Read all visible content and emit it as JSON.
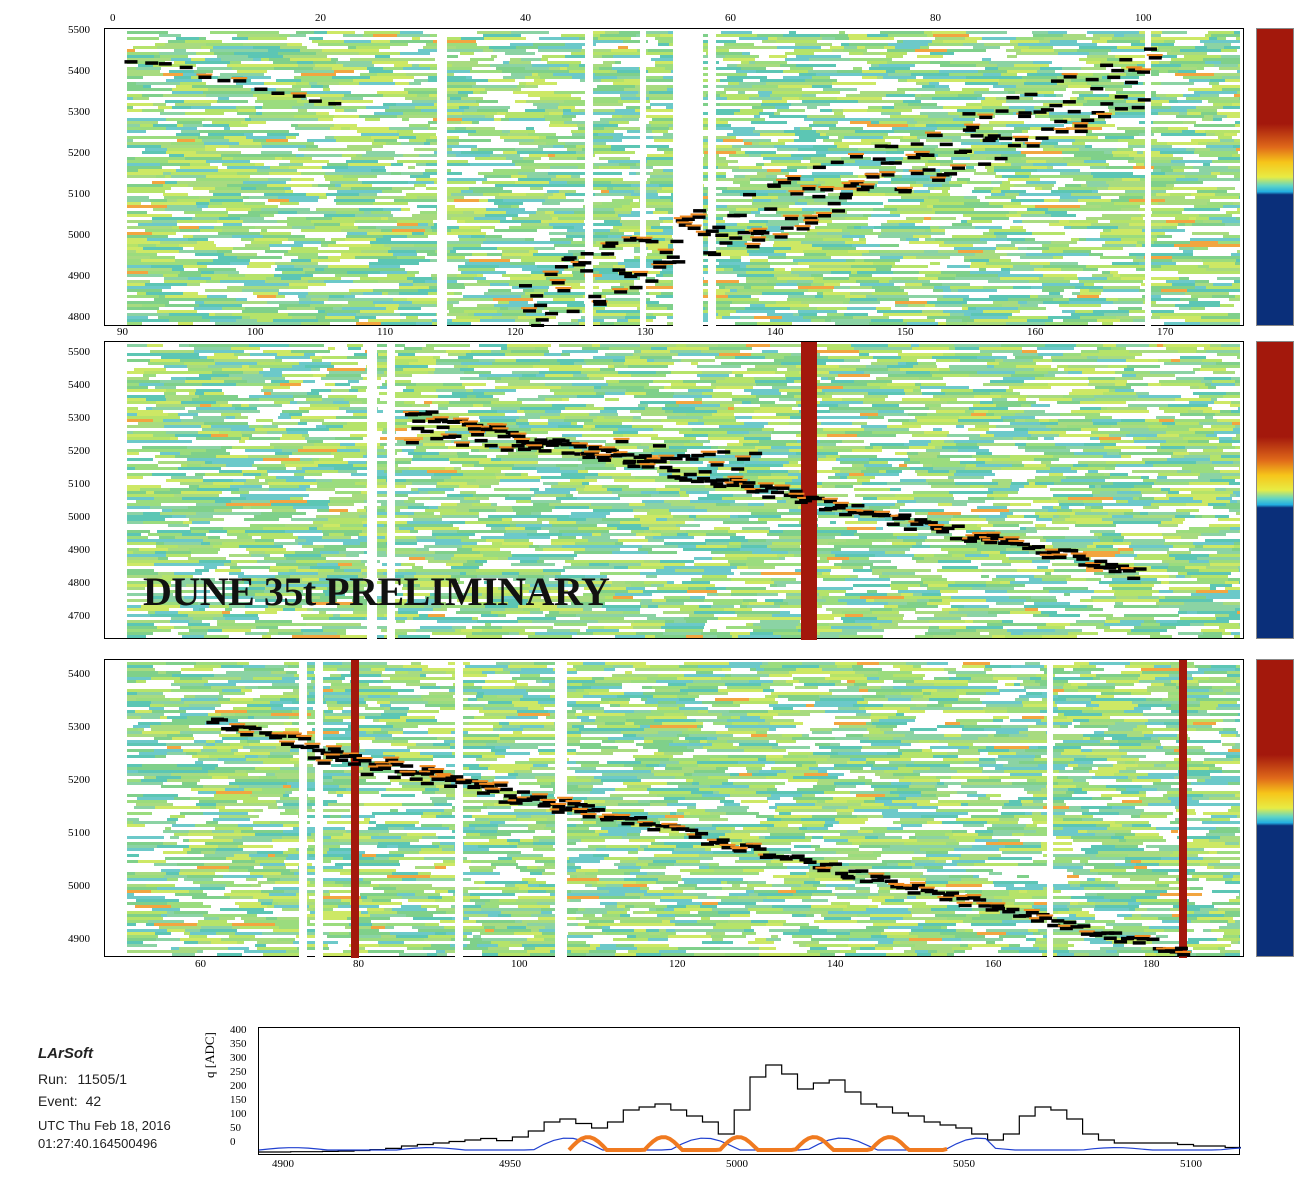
{
  "overlay_label": "DUNE 35t PRELIMINARY",
  "info": {
    "app": "LArSoft",
    "run_label": "Run:",
    "run_value": "11505/1",
    "event_label": "Event:",
    "event_value": "42",
    "date": "UTC Thu Feb 18, 2016",
    "time": "01:27:40.164500496"
  },
  "colors": {
    "background_hits": "#7fd08a",
    "track_hits": "#000000",
    "dead_channel": "#a3180c",
    "bottom_black": "#000000",
    "bottom_blue": "#2040d0",
    "bottom_orange": "#f07a20"
  },
  "panels": [
    {
      "top_ticks": [
        "0",
        "20",
        "40",
        "60",
        "80",
        "100"
      ],
      "bottom_ticks": [
        "90",
        "100",
        "110",
        "120",
        "130",
        "140",
        "150",
        "160",
        "170"
      ],
      "y_ticks": [
        "5500",
        "5400",
        "5300",
        "5200",
        "5100",
        "5000",
        "4900",
        "4800"
      ]
    },
    {
      "bottom_ticks": [],
      "y_ticks": [
        "5500",
        "5400",
        "5300",
        "5200",
        "5100",
        "5000",
        "4900",
        "4800",
        "4700"
      ]
    },
    {
      "bottom_ticks": [
        "60",
        "80",
        "100",
        "120",
        "140",
        "160",
        "180"
      ],
      "y_ticks": [
        "5400",
        "5300",
        "5200",
        "5100",
        "5000",
        "4900"
      ]
    }
  ],
  "bottom_plot": {
    "ylabel": "q [ADC]",
    "y_ticks": [
      "400",
      "350",
      "300",
      "250",
      "200",
      "150",
      "100",
      "50",
      "0"
    ],
    "x_ticks": [
      "4900",
      "4950",
      "5000",
      "5050",
      "5100"
    ]
  }
}
